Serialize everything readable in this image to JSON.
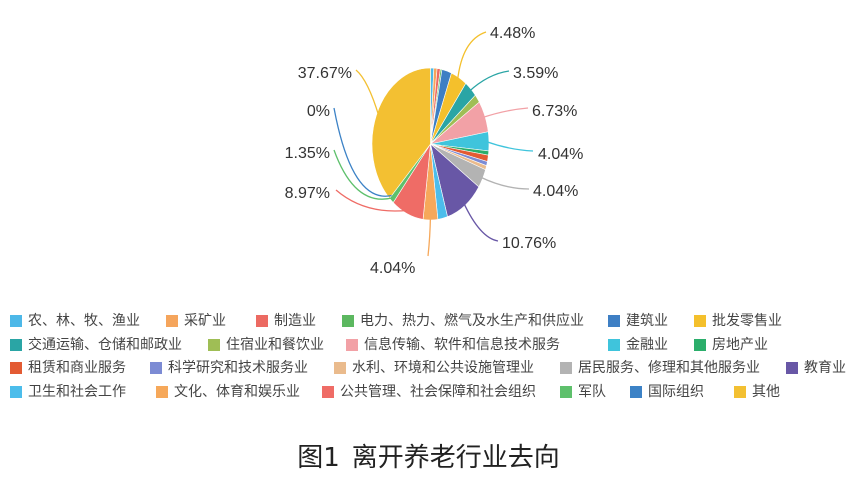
{
  "chart_data": {
    "type": "pie",
    "categories": [
      "农、林、牧、渔业",
      "采矿业",
      "制造业",
      "电力、热力、燃气及水生产和供应业",
      "建筑业",
      "批发零售业",
      "交通运输、仓储和邮政业",
      "住宿业和餐饮业",
      "信息传输、软件和信息技术服务",
      "金融业",
      "房地产业",
      "租赁和商业服务",
      "科学研究和技术服务业",
      "水利、环境和公共设施管理业",
      "居民服务、修理和其他服务业",
      "教育业",
      "卫生和社会工作",
      "文化、体育和娱乐业",
      "公共管理、社会保障和社会组织",
      "军队",
      "国际组织",
      "其他"
    ],
    "values": [
      0.9,
      0.9,
      0.9,
      0.45,
      2.69,
      4.48,
      3.59,
      1.79,
      6.73,
      4.04,
      0.9,
      1.35,
      0.9,
      0.9,
      4.04,
      10.76,
      2.69,
      4.04,
      8.97,
      1.35,
      0,
      37.67
    ],
    "data_labels": [
      null,
      null,
      null,
      null,
      null,
      "4.48%",
      "3.59%",
      null,
      "6.73%",
      "4.04%",
      null,
      null,
      null,
      null,
      "4.04%",
      "10.76%",
      null,
      "4.04%",
      "8.97%",
      "1.35%",
      "0%",
      "37.67%"
    ],
    "colors": [
      "#4DB8E8",
      "#F5A55C",
      "#EC6A62",
      "#5CB860",
      "#3E7FC4",
      "#F4C02C",
      "#2AA5A5",
      "#9FBE55",
      "#F2A1A6",
      "#3FC4DC",
      "#2BAE6B",
      "#E35B33",
      "#7C8BD4",
      "#EABB8D",
      "#B3B3B3",
      "#6857A6",
      "#4CBDEB",
      "#F6A85A",
      "#EF6C66",
      "#5EC06C",
      "#3C82C6",
      "#F3C032"
    ],
    "start": "top",
    "direction": "clockwise",
    "legend_position": "bottom"
  },
  "caption": {
    "figure_number": "图1",
    "text": "离开养老行业去向"
  }
}
